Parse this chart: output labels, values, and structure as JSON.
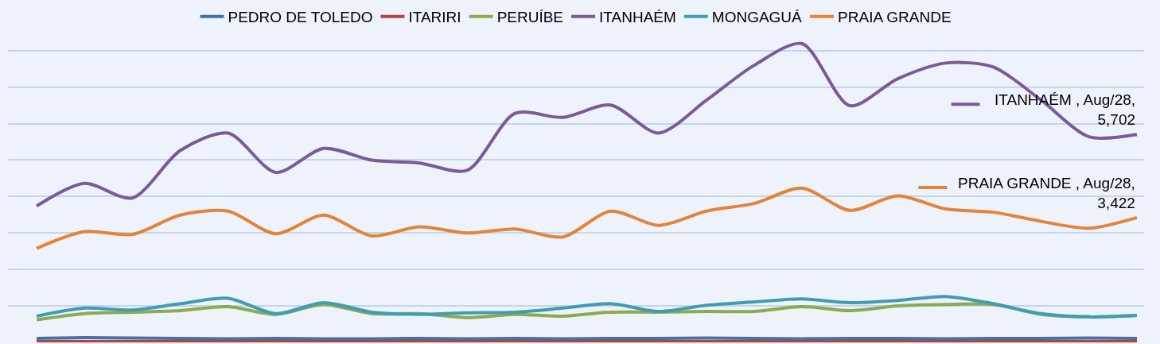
{
  "chart_data": {
    "type": "line",
    "legend": "top",
    "grid": "y",
    "line_style": "solid",
    "marker": "none",
    "categories": [
      null,
      null,
      null,
      null,
      null,
      null,
      null,
      null,
      null,
      null,
      null,
      null,
      null,
      null,
      null,
      null,
      null,
      null,
      null,
      null,
      null,
      null,
      null,
      null
    ],
    "series": [
      {
        "name": "PEDRO DE TOLEDO",
        "color": "#4472a8",
        "values": [
          110,
          130,
          120,
          110,
          100,
          110,
          100,
          100,
          110,
          100,
          110,
          100,
          110,
          110,
          120,
          110,
          100,
          110,
          110,
          100,
          110,
          110,
          120,
          110
        ]
      },
      {
        "name": "ITARIRI",
        "color": "#b04444",
        "values": [
          20,
          20,
          20,
          20,
          20,
          20,
          20,
          20,
          20,
          20,
          20,
          20,
          20,
          20,
          20,
          20,
          20,
          20,
          20,
          20,
          20,
          20,
          20,
          20
        ]
      },
      {
        "name": "PERUÍBE",
        "color": "#8aab4e",
        "values": [
          620,
          790,
          830,
          870,
          980,
          770,
          1040,
          790,
          790,
          680,
          770,
          720,
          830,
          830,
          850,
          850,
          980,
          870,
          1000,
          1040,
          1040,
          770,
          700,
          740
        ]
      },
      {
        "name": "ITANHAÉM",
        "color": "#7a5a9a",
        "values": [
          3740,
          4360,
          3960,
          5260,
          5740,
          4660,
          5320,
          5000,
          4920,
          4720,
          6280,
          6170,
          6510,
          5740,
          6640,
          7600,
          8190,
          6490,
          7230,
          7660,
          7550,
          6640,
          5640,
          5702
        ],
        "value_labels": [
          null,
          null,
          null,
          null,
          null,
          null,
          null,
          null,
          null,
          null,
          null,
          null,
          null,
          null,
          null,
          null,
          null,
          null,
          null,
          null,
          null,
          null,
          null,
          "ITANHAÉM , Aug/28, 5,702"
        ]
      },
      {
        "name": "MONGAGUÁ",
        "color": "#3f9cb5",
        "values": [
          720,
          940,
          890,
          1060,
          1210,
          790,
          1090,
          830,
          770,
          810,
          830,
          940,
          1060,
          850,
          1020,
          1110,
          1190,
          1090,
          1150,
          1260,
          1060,
          790,
          700,
          740
        ]
      },
      {
        "name": "PRAIA GRANDE",
        "color": "#e2843a",
        "values": [
          2580,
          3040,
          2960,
          3490,
          3600,
          2980,
          3490,
          2920,
          3170,
          3000,
          3110,
          2890,
          3600,
          3210,
          3600,
          3810,
          4230,
          3620,
          4020,
          3660,
          3570,
          3320,
          3130,
          3422
        ],
        "value_labels": [
          null,
          null,
          null,
          null,
          null,
          null,
          null,
          null,
          null,
          null,
          null,
          null,
          null,
          null,
          null,
          null,
          null,
          null,
          null,
          null,
          null,
          null,
          null,
          "PRAIA GRANDE , Aug/28, 3,422"
        ]
      }
    ]
  }
}
